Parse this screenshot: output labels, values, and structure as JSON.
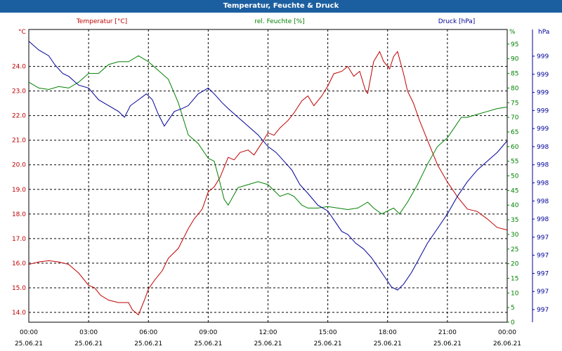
{
  "window": {
    "title": "Temperatur, Feuchte & Druck"
  },
  "colors": {
    "temperature": "#c00000",
    "humidity": "#008000",
    "pressure": "#000099",
    "titlebar": "#1c5fa0",
    "grid": "#000000"
  },
  "chart_data": {
    "type": "line",
    "title": "Temperatur, Feuchte & Druck",
    "grid": true,
    "x": {
      "range": [
        "25.06.21 00:00",
        "26.06.21 00:00"
      ],
      "ticks": [
        {
          "time": "00:00",
          "date": "25.06.21"
        },
        {
          "time": "03:00",
          "date": "25.06.21"
        },
        {
          "time": "06:00",
          "date": "25.06.21"
        },
        {
          "time": "09:00",
          "date": "25.06.21"
        },
        {
          "time": "12:00",
          "date": "25.06.21"
        },
        {
          "time": "15:00",
          "date": "25.06.21"
        },
        {
          "time": "18:00",
          "date": "25.06.21"
        },
        {
          "time": "21:00",
          "date": "25.06.21"
        },
        {
          "time": "00:00",
          "date": "26.06.21"
        }
      ]
    },
    "axes": {
      "temperature": {
        "label": "Temperatur [°C]",
        "unit": "°C",
        "ylim": [
          13.6,
          25.5
        ],
        "ticks": [
          "14.0",
          "15.0",
          "16.0",
          "17.0",
          "18.0",
          "19.0",
          "20.0",
          "21.0",
          "22.0",
          "23.0",
          "24.0"
        ],
        "tick_values": [
          14,
          15,
          16,
          17,
          18,
          19,
          20,
          21,
          22,
          23,
          24
        ]
      },
      "humidity": {
        "label": "rel. Feuchte [%]",
        "unit": "%",
        "ylim": [
          0,
          100
        ],
        "ticks": [
          "0",
          "5",
          "10",
          "15",
          "20",
          "25",
          "30",
          "35",
          "40",
          "45",
          "50",
          "55",
          "60",
          "65",
          "70",
          "75",
          "80",
          "85",
          "90",
          "95"
        ],
        "tick_values": [
          0,
          5,
          10,
          15,
          20,
          25,
          30,
          35,
          40,
          45,
          50,
          55,
          60,
          65,
          70,
          75,
          80,
          85,
          90,
          95
        ]
      },
      "pressure": {
        "label": "Druck [hPa]",
        "unit": "hPa",
        "ticks": [
          "997",
          "997",
          "997",
          "997",
          "997",
          "998",
          "998",
          "998",
          "998",
          "998",
          "999",
          "999",
          "999",
          "999",
          "999"
        ]
      }
    },
    "series": [
      {
        "name": "Temperatur [°C]",
        "axis": "temperature",
        "color": "#c00000",
        "points": [
          [
            0,
            15.95
          ],
          [
            0.5,
            16.05
          ],
          [
            1,
            16.1
          ],
          [
            1.5,
            16.05
          ],
          [
            2,
            15.95
          ],
          [
            2.5,
            15.6
          ],
          [
            3,
            15.1
          ],
          [
            3.3,
            15.0
          ],
          [
            3.6,
            14.7
          ],
          [
            4,
            14.5
          ],
          [
            4.5,
            14.4
          ],
          [
            5,
            14.4
          ],
          [
            5.2,
            14.1
          ],
          [
            5.5,
            13.9
          ],
          [
            5.8,
            14.5
          ],
          [
            6,
            14.95
          ],
          [
            6.3,
            15.3
          ],
          [
            6.7,
            15.7
          ],
          [
            7,
            16.2
          ],
          [
            7.5,
            16.6
          ],
          [
            8,
            17.4
          ],
          [
            8.3,
            17.8
          ],
          [
            8.7,
            18.2
          ],
          [
            9,
            18.9
          ],
          [
            9.3,
            19.1
          ],
          [
            9.6,
            19.5
          ],
          [
            10,
            20.3
          ],
          [
            10.3,
            20.2
          ],
          [
            10.6,
            20.5
          ],
          [
            11,
            20.6
          ],
          [
            11.3,
            20.4
          ],
          [
            11.7,
            20.9
          ],
          [
            12,
            21.3
          ],
          [
            12.3,
            21.2
          ],
          [
            12.6,
            21.5
          ],
          [
            13,
            21.8
          ],
          [
            13.3,
            22.1
          ],
          [
            13.7,
            22.6
          ],
          [
            14,
            22.8
          ],
          [
            14.3,
            22.4
          ],
          [
            14.7,
            22.8
          ],
          [
            15,
            23.2
          ],
          [
            15.3,
            23.7
          ],
          [
            15.7,
            23.8
          ],
          [
            16,
            24.0
          ],
          [
            16.3,
            23.6
          ],
          [
            16.6,
            23.8
          ],
          [
            16.9,
            23.0
          ],
          [
            17,
            22.9
          ],
          [
            17.3,
            24.2
          ],
          [
            17.6,
            24.6
          ],
          [
            17.8,
            24.2
          ],
          [
            18.1,
            23.9
          ],
          [
            18.3,
            24.4
          ],
          [
            18.5,
            24.6
          ],
          [
            18.8,
            23.7
          ],
          [
            19,
            23.0
          ],
          [
            19.3,
            22.5
          ],
          [
            19.6,
            21.8
          ],
          [
            20,
            21.0
          ],
          [
            20.5,
            20.0
          ],
          [
            21,
            19.3
          ],
          [
            21.5,
            18.7
          ],
          [
            22,
            18.2
          ],
          [
            22.5,
            18.1
          ],
          [
            23,
            17.8
          ],
          [
            23.5,
            17.45
          ],
          [
            24,
            17.35
          ]
        ]
      },
      {
        "name": "rel. Feuchte [%]",
        "axis": "humidity",
        "color": "#008000",
        "points": [
          [
            0,
            82
          ],
          [
            0.5,
            80
          ],
          [
            1,
            79.5
          ],
          [
            1.5,
            80.5
          ],
          [
            2,
            80
          ],
          [
            2.5,
            82
          ],
          [
            3,
            85
          ],
          [
            3.5,
            85
          ],
          [
            4,
            88
          ],
          [
            4.5,
            89
          ],
          [
            5,
            89
          ],
          [
            5.5,
            91
          ],
          [
            6,
            89
          ],
          [
            6.5,
            86
          ],
          [
            7,
            83
          ],
          [
            7.5,
            75
          ],
          [
            8,
            64
          ],
          [
            8.5,
            61
          ],
          [
            9,
            56
          ],
          [
            9.3,
            55
          ],
          [
            9.5,
            50
          ],
          [
            9.8,
            42
          ],
          [
            10,
            40
          ],
          [
            10.5,
            46
          ],
          [
            11,
            47
          ],
          [
            11.5,
            48
          ],
          [
            12,
            47
          ],
          [
            12.3,
            45
          ],
          [
            12.6,
            43
          ],
          [
            13,
            44
          ],
          [
            13.3,
            43
          ],
          [
            13.7,
            40
          ],
          [
            14,
            39
          ],
          [
            14.5,
            39
          ],
          [
            15,
            39.5
          ],
          [
            15.5,
            39
          ],
          [
            16,
            38.5
          ],
          [
            16.5,
            39
          ],
          [
            17,
            41
          ],
          [
            17.3,
            39
          ],
          [
            17.7,
            37
          ],
          [
            18,
            38
          ],
          [
            18.3,
            39
          ],
          [
            18.6,
            37
          ],
          [
            19,
            41
          ],
          [
            19.5,
            47
          ],
          [
            20,
            54
          ],
          [
            20.5,
            60
          ],
          [
            21,
            63
          ],
          [
            21.3,
            66
          ],
          [
            21.7,
            70
          ],
          [
            22,
            70
          ],
          [
            22.5,
            71
          ],
          [
            23,
            72
          ],
          [
            23.5,
            73
          ],
          [
            24,
            73.5
          ]
        ]
      },
      {
        "name": "Druck [hPa]",
        "axis": "pressure",
        "color": "#000099",
        "points": [
          [
            0,
            96
          ],
          [
            0.5,
            93
          ],
          [
            1,
            91
          ],
          [
            1.3,
            88
          ],
          [
            1.7,
            85
          ],
          [
            2,
            84
          ],
          [
            2.5,
            81
          ],
          [
            3,
            80
          ],
          [
            3.5,
            76
          ],
          [
            4,
            74
          ],
          [
            4.5,
            72
          ],
          [
            4.8,
            70
          ],
          [
            5.1,
            74
          ],
          [
            5.5,
            76
          ],
          [
            5.9,
            78
          ],
          [
            6.2,
            76
          ],
          [
            6.5,
            71
          ],
          [
            6.8,
            67
          ],
          [
            7,
            69
          ],
          [
            7.3,
            72
          ],
          [
            7.7,
            73
          ],
          [
            8,
            74
          ],
          [
            8.5,
            78
          ],
          [
            9,
            80
          ],
          [
            9.3,
            78
          ],
          [
            9.7,
            75
          ],
          [
            10,
            73
          ],
          [
            10.5,
            70
          ],
          [
            11,
            67
          ],
          [
            11.5,
            64
          ],
          [
            12,
            60
          ],
          [
            12.4,
            58
          ],
          [
            12.8,
            55
          ],
          [
            13.2,
            52
          ],
          [
            13.6,
            47
          ],
          [
            14,
            44
          ],
          [
            14.5,
            40
          ],
          [
            15,
            38
          ],
          [
            15.4,
            34
          ],
          [
            15.7,
            31
          ],
          [
            16,
            30
          ],
          [
            16.4,
            27
          ],
          [
            16.8,
            25
          ],
          [
            17.2,
            22
          ],
          [
            17.6,
            18
          ],
          [
            18,
            14
          ],
          [
            18.2,
            12
          ],
          [
            18.5,
            11
          ],
          [
            18.8,
            13
          ],
          [
            19.2,
            17
          ],
          [
            19.6,
            22
          ],
          [
            20,
            27
          ],
          [
            20.5,
            32
          ],
          [
            21,
            37
          ],
          [
            21.5,
            43
          ],
          [
            22,
            48
          ],
          [
            22.5,
            52
          ],
          [
            23,
            55
          ],
          [
            23.5,
            58
          ],
          [
            24,
            62
          ]
        ]
      }
    ]
  }
}
